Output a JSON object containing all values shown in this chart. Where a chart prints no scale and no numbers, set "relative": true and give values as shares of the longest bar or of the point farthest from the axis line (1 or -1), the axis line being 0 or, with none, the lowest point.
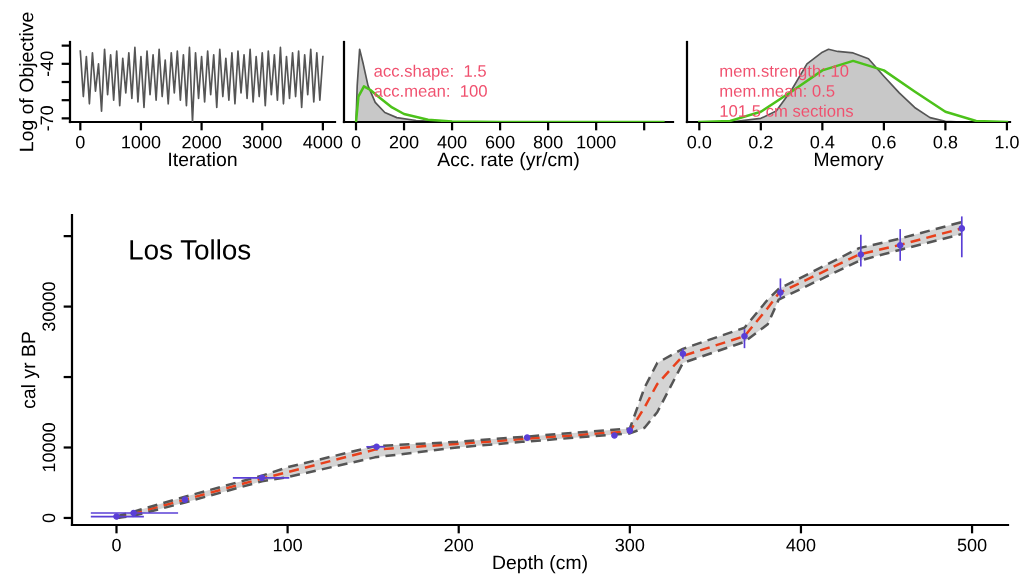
{
  "chart_data": [
    {
      "type": "line",
      "xlabel": "Iteration",
      "ylabel": "Log of Objective",
      "xlim": [
        -170,
        4200
      ],
      "ylim": [
        -72,
        -28
      ],
      "xticks": [
        0,
        1000,
        2000,
        3000,
        4000
      ],
      "yticks": [
        {
          "value": -30,
          "label": null
        },
        -40,
        {
          "value": -50,
          "label": null
        },
        {
          "value": -60,
          "label": null
        },
        -70
      ],
      "grid": false,
      "legend": false,
      "series": [
        {
          "color": "#555555",
          "x": [
            0,
            50,
            100,
            150,
            200,
            250,
            300,
            350,
            400,
            450,
            500,
            550,
            600,
            650,
            700,
            750,
            800,
            850,
            900,
            950,
            1000,
            1050,
            1100,
            1150,
            1200,
            1250,
            1300,
            1350,
            1400,
            1450,
            1500,
            1550,
            1600,
            1650,
            1700,
            1750,
            1800,
            1850,
            1900,
            1950,
            2000,
            2050,
            2100,
            2150,
            2200,
            2250,
            2300,
            2350,
            2400,
            2450,
            2500,
            2550,
            2600,
            2650,
            2700,
            2750,
            2800,
            2850,
            2900,
            2950,
            3000,
            3050,
            3100,
            3150,
            3200,
            3250,
            3300,
            3350,
            3400,
            3450,
            3500,
            3550,
            3600,
            3650,
            3700,
            3750,
            3800,
            3850,
            3900,
            3950,
            4000
          ],
          "values": [
            -33,
            -58,
            -36,
            -62,
            -34,
            -55,
            -40,
            -66,
            -32,
            -57,
            -35,
            -60,
            -33,
            -63,
            -37,
            -56,
            -34,
            -59,
            -31,
            -61,
            -36,
            -64,
            -33,
            -57,
            -35,
            -60,
            -32,
            -58,
            -38,
            -62,
            -34,
            -56,
            -33,
            -60,
            -35,
            -63,
            -31,
            -72,
            -34,
            -59,
            -36,
            -61,
            -33,
            -57,
            -35,
            -64,
            -32,
            -58,
            -37,
            -60,
            -34,
            -62,
            -33,
            -56,
            -35,
            -59,
            -32,
            -61,
            -36,
            -58,
            -34,
            -63,
            -33,
            -57,
            -35,
            -60,
            -31,
            -62,
            -36,
            -59,
            -34,
            -58,
            -33,
            -64,
            -35,
            -57,
            -32,
            -61,
            -34,
            -60,
            -36
          ]
        }
      ]
    },
    {
      "type": "area",
      "relative": true,
      "xlabel": "Acc. rate (yr/cm)",
      "xlim": [
        -50,
        1320
      ],
      "xticks": [
        0,
        200,
        400,
        600,
        800,
        1000,
        {
          "value": 1200,
          "label": null
        }
      ],
      "grid": false,
      "legend": false,
      "annotations": [
        "acc.shape:  1.5",
        "acc.mean:  100"
      ],
      "series": [
        {
          "type": "area",
          "color": "#c8c8c8",
          "x": [
            0,
            5,
            15,
            30,
            50,
            80,
            120,
            170,
            250,
            350,
            500
          ],
          "values": [
            0,
            0.5,
            1,
            0.8,
            0.5,
            0.27,
            0.13,
            0.06,
            0.02,
            0.005,
            0
          ]
        },
        {
          "type": "line",
          "color": "#4cc21a",
          "x": [
            0,
            10,
            33,
            60,
            100,
            150,
            200,
            300,
            400,
            600,
            1280
          ],
          "values": [
            0,
            0.35,
            0.49,
            0.44,
            0.33,
            0.2,
            0.11,
            0.03,
            0.008,
            0,
            0
          ]
        }
      ]
    },
    {
      "type": "area",
      "relative": true,
      "xlabel": "Memory",
      "xlim": [
        -0.04,
        1.01
      ],
      "xticks": [
        {
          "value": 0,
          "label": "0.0"
        },
        0.2,
        0.4,
        0.6,
        0.8,
        {
          "value": 1,
          "label": "1.0"
        }
      ],
      "grid": false,
      "legend": false,
      "annotations": [
        "mem.strength: 10",
        "mem.mean: 0.5",
        "101 5 cm sections"
      ],
      "series": [
        {
          "type": "area",
          "color": "#c8c8c8",
          "x": [
            0.1,
            0.2,
            0.25,
            0.3,
            0.35,
            0.4,
            0.42,
            0.45,
            0.5,
            0.55,
            0.6,
            0.65,
            0.7,
            0.75,
            0.8,
            0.85
          ],
          "values": [
            0,
            0.05,
            0.15,
            0.44,
            0.8,
            0.96,
            1,
            0.97,
            0.95,
            0.87,
            0.63,
            0.4,
            0.2,
            0.06,
            0.01,
            0
          ]
        },
        {
          "type": "line",
          "color": "#4cc21a",
          "x": [
            0,
            0.1,
            0.2,
            0.3,
            0.4,
            0.5,
            0.6,
            0.7,
            0.8,
            0.9,
            1
          ],
          "values": [
            0,
            0.014,
            0.14,
            0.42,
            0.71,
            0.84,
            0.71,
            0.42,
            0.14,
            0.014,
            0
          ]
        }
      ]
    },
    {
      "type": "line",
      "title": "Los Tollos",
      "xlabel": "Depth (cm)",
      "ylabel": "cal yr BP",
      "xlim": [
        -26,
        521
      ],
      "ylim": [
        -1000,
        43000
      ],
      "xticks": [
        0,
        100,
        200,
        300,
        400,
        500
      ],
      "yticks": [
        0,
        10000,
        {
          "value": 20000,
          "label": null
        },
        30000,
        {
          "value": 40000,
          "label": null
        }
      ],
      "grid": false,
      "legend": false,
      "series": [
        {
          "type": "line",
          "color": "#e8401c",
          "line_style": "dashed",
          "x": [
            0,
            10,
            40,
            85,
            100,
            151,
            199,
            237,
            300,
            308.6,
            316,
            331,
            367,
            380.6,
            387,
            434,
            457,
            494
          ],
          "values": [
            0,
            600,
            2600,
            5600,
            6500,
            9700,
            10500,
            11200,
            12300,
            15700,
            19000,
            23000,
            25800,
            29800,
            31900,
            37400,
            38700,
            41100
          ],
          "lower": [
            0,
            300,
            2200,
            5200,
            5800,
            8600,
            10000,
            10800,
            12000,
            12800,
            15000,
            22000,
            25000,
            27500,
            31000,
            36500,
            38000,
            40300
          ],
          "upper": [
            200,
            900,
            3000,
            6000,
            7200,
            10200,
            10800,
            11500,
            12700,
            18500,
            22000,
            24000,
            27000,
            31000,
            32500,
            38300,
            39600,
            42000
          ]
        },
        {
          "type": "line",
          "color": "#555555",
          "line_style": "dashed",
          "x": [
            0,
            10,
            40,
            85,
            100,
            151,
            199,
            237,
            300,
            308.6,
            316,
            331,
            367,
            380.6,
            387,
            434,
            457,
            494
          ],
          "values": [
            0,
            300,
            2200,
            5200,
            5800,
            8600,
            10000,
            10800,
            12000,
            12800,
            15000,
            22000,
            25000,
            27500,
            31000,
            36500,
            38000,
            40300
          ]
        },
        {
          "type": "line",
          "color": "#555555",
          "line_style": "dashed",
          "x": [
            0,
            10,
            40,
            85,
            100,
            151,
            199,
            237,
            300,
            308.6,
            316,
            331,
            367,
            380.6,
            387,
            434,
            457,
            494
          ],
          "values": [
            200,
            900,
            3000,
            6000,
            7200,
            10200,
            10800,
            11500,
            12700,
            18500,
            22000,
            24000,
            27000,
            31000,
            32500,
            38300,
            39600,
            42000
          ]
        },
        {
          "type": "scatter",
          "color": "#5a3fd6",
          "marker": "circle",
          "x": [
            0,
            10,
            40,
            85,
            152,
            240,
            291,
            300,
            331,
            367,
            388,
            435,
            458,
            494
          ],
          "values": [
            200,
            700,
            2600,
            5700,
            10100,
            11400,
            11700,
            12400,
            23300,
            25800,
            32000,
            37400,
            38700,
            41100
          ],
          "errors": [
            null,
            null,
            null,
            null,
            null,
            null,
            null,
            [
              11900,
              12900
            ],
            [
              22600,
              24000
            ],
            [
              24100,
              26800
            ],
            [
              31200,
              34000
            ],
            [
              35700,
              40200
            ],
            [
              36500,
              41000
            ],
            [
              37000,
              42800
            ]
          ],
          "xerrors": [
            [
              -15,
              16
            ],
            [
              -15,
              36
            ],
            null,
            [
              68,
              101
            ],
            [
              146,
              157
            ],
            null,
            null,
            null,
            null,
            null,
            null,
            null,
            null,
            null
          ]
        }
      ]
    }
  ]
}
